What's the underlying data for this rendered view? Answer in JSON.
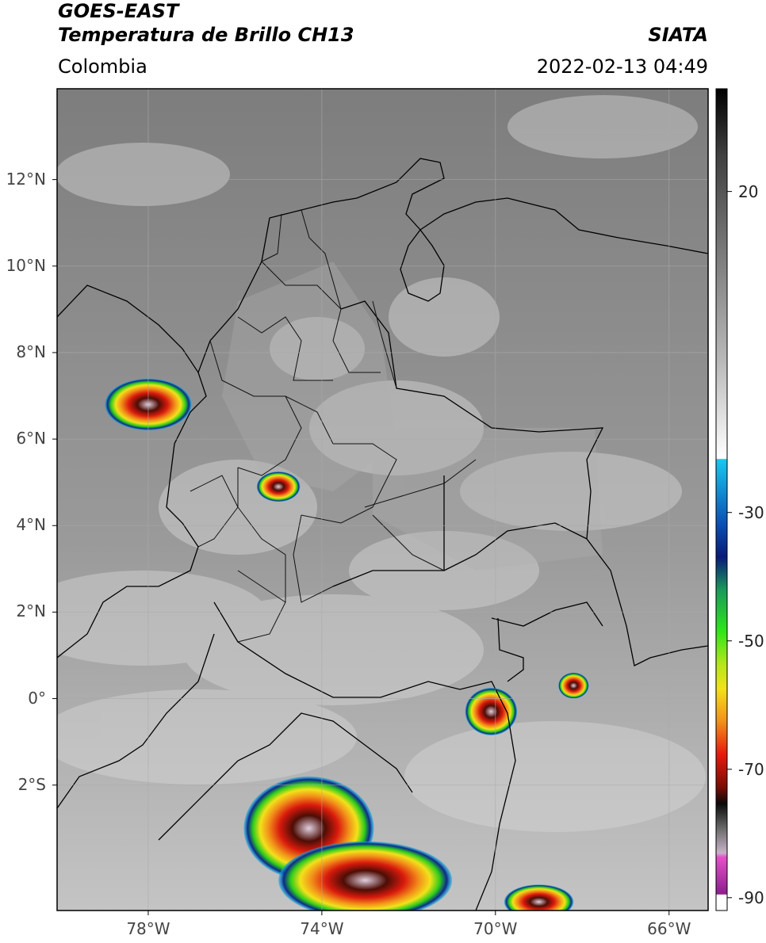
{
  "header": {
    "satellite": "GOES-EAST",
    "product": "Temperatura de Brillo CH13",
    "region": "Colombia",
    "source": "SIATA",
    "datetime": "2022-02-13 04:49"
  },
  "map": {
    "lat_labels": [
      {
        "value": 12,
        "label": "12°N"
      },
      {
        "value": 10,
        "label": "10°N"
      },
      {
        "value": 8,
        "label": "8°N"
      },
      {
        "value": 6,
        "label": "6°N"
      },
      {
        "value": 4,
        "label": "4°N"
      },
      {
        "value": 2,
        "label": "2°N"
      },
      {
        "value": 0,
        "label": "0°"
      },
      {
        "value": -2,
        "label": "2°S"
      }
    ],
    "lon_labels": [
      {
        "value": -78,
        "label": "78°W"
      },
      {
        "value": -74,
        "label": "74°W"
      },
      {
        "value": -70,
        "label": "70°W"
      },
      {
        "value": -66,
        "label": "66°W"
      }
    ],
    "lon_range": [
      -80.1,
      -65.1
    ],
    "lat_range": [
      -4.9,
      14.1
    ]
  },
  "colorbar": {
    "ticks": [
      {
        "value": 20,
        "label": "20"
      },
      {
        "value": -30,
        "label": "-30"
      },
      {
        "value": -50,
        "label": "-50"
      },
      {
        "value": -70,
        "label": "-70"
      },
      {
        "value": -90,
        "label": "-90"
      }
    ],
    "range": [
      -92,
      36
    ],
    "colors": {
      "warm_gray": "#8a8a8a",
      "cyan": "#19b5e6",
      "blue": "#0a2a8c",
      "green": "#2ecc1a",
      "yellow": "#f2e21a",
      "orange": "#f2901a",
      "red": "#d91a0d",
      "dark_red": "#4d0d05",
      "black": "#0a0a0a",
      "magenta": "#d64fc8",
      "purple": "#7a1f8c"
    }
  },
  "storm_cells": [
    {
      "lon": -78.0,
      "lat": 6.8,
      "rx": 1.0,
      "ry": 0.6
    },
    {
      "lon": -75.0,
      "lat": 4.9,
      "rx": 0.5,
      "ry": 0.35
    },
    {
      "lon": -74.3,
      "lat": -3.0,
      "rx": 1.5,
      "ry": 1.2
    },
    {
      "lon": -73.0,
      "lat": -4.2,
      "rx": 2.0,
      "ry": 0.9
    },
    {
      "lon": -70.1,
      "lat": -0.3,
      "rx": 0.6,
      "ry": 0.55
    },
    {
      "lon": -68.2,
      "lat": 0.3,
      "rx": 0.35,
      "ry": 0.3
    },
    {
      "lon": -69.0,
      "lat": -4.7,
      "rx": 0.8,
      "ry": 0.4
    }
  ]
}
